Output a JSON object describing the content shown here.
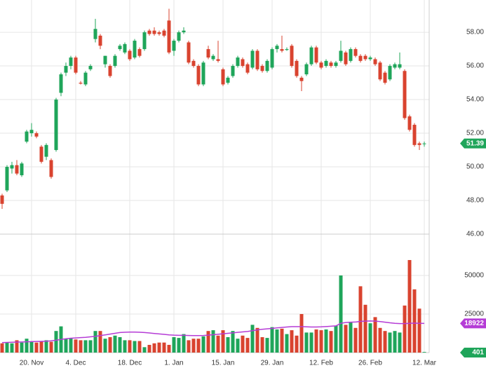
{
  "chart_data": {
    "type": "candlestick",
    "up_color": "#1fa55a",
    "down_color": "#d9432f",
    "ma_color": "#b53cd6",
    "grid": true,
    "categories": [
      null,
      null,
      null,
      null,
      null,
      null,
      "20. Nov",
      null,
      null,
      null,
      null,
      null,
      null,
      null,
      null,
      "4. Dec",
      null,
      null,
      null,
      null,
      null,
      null,
      null,
      null,
      null,
      null,
      "18. Dec",
      null,
      null,
      null,
      null,
      null,
      null,
      null,
      null,
      "1. Jan",
      null,
      null,
      null,
      null,
      null,
      null,
      null,
      null,
      null,
      "15. Jan",
      null,
      null,
      null,
      null,
      null,
      null,
      null,
      null,
      null,
      "29. Jan",
      null,
      null,
      null,
      null,
      null,
      null,
      null,
      null,
      null,
      "12. Feb",
      null,
      null,
      null,
      null,
      null,
      null,
      null,
      null,
      null,
      "26. Feb",
      null,
      null,
      null,
      null,
      null,
      null,
      null,
      null,
      null,
      null,
      "12. Mar"
    ],
    "open": [
      48.3,
      48.6,
      49.9,
      50.1,
      49.5,
      51.5,
      52.0,
      52.0,
      51.2,
      50.6,
      50.4,
      51.0,
      54.4,
      55.6,
      56.0,
      56.5,
      55.0,
      54.9,
      55.8,
      57.6,
      57.8,
      56.1,
      56.0,
      56.0,
      57.0,
      56.8,
      56.9,
      56.5,
      57.0,
      57.0,
      58.1,
      58.1,
      58.0,
      58.1,
      58.7,
      56.9,
      57.5,
      58.0,
      57.4,
      56.3,
      56.0,
      54.9,
      57.0,
      56.4,
      56.4,
      55.8,
      55.0,
      55.4,
      56.0,
      56.4,
      56.1,
      55.9,
      56.9,
      56.0,
      55.7,
      55.9,
      57.0,
      57.0,
      56.95,
      57.2,
      56.3,
      55.3,
      55.5,
      56.1,
      57.1,
      56.2,
      56.0,
      56.2,
      56.0,
      56.3,
      56.8,
      56.3,
      57.0,
      56.6,
      56.6,
      56.4,
      56.4,
      56.2,
      55.6,
      55.2,
      55.9,
      55.9,
      55.7,
      53.0,
      52.5,
      51.4,
      51.35
    ],
    "high": [
      48.4,
      50.1,
      50.3,
      50.4,
      50.3,
      52.2,
      52.6,
      52.1,
      51.3,
      51.4,
      50.5,
      54.1,
      55.6,
      56.2,
      56.6,
      56.6,
      55.1,
      55.7,
      56.1,
      58.8,
      57.9,
      56.6,
      56.1,
      56.7,
      57.3,
      57.4,
      57.0,
      57.6,
      57.1,
      58.1,
      58.2,
      58.3,
      58.1,
      58.2,
      59.4,
      57.6,
      58.1,
      58.3,
      57.5,
      56.4,
      56.1,
      56.3,
      57.2,
      56.7,
      57.5,
      55.9,
      55.4,
      56.1,
      56.6,
      56.5,
      56.2,
      57.0,
      57.0,
      56.1,
      56.4,
      57.1,
      57.3,
      57.8,
      57.1,
      57.3,
      56.4,
      55.4,
      56.2,
      57.2,
      57.2,
      56.3,
      56.4,
      56.3,
      56.3,
      57.5,
      56.9,
      57.1,
      57.1,
      56.7,
      56.7,
      56.6,
      56.5,
      56.3,
      55.7,
      56.1,
      56.2,
      56.8,
      55.8,
      53.1,
      52.6,
      51.5,
      51.5
    ],
    "low": [
      47.5,
      48.5,
      49.6,
      49.5,
      49.4,
      51.4,
      51.8,
      51.7,
      50.2,
      50.4,
      49.3,
      50.9,
      54.2,
      55.4,
      55.8,
      55.5,
      54.9,
      54.8,
      55.7,
      57.4,
      57.0,
      55.9,
      55.3,
      55.9,
      56.9,
      56.7,
      56.3,
      56.4,
      56.5,
      56.9,
      57.8,
      57.8,
      57.8,
      57.7,
      56.7,
      56.6,
      57.4,
      57.9,
      56.1,
      55.9,
      54.8,
      54.8,
      56.4,
      56.3,
      56.2,
      54.8,
      54.9,
      55.3,
      55.9,
      55.9,
      55.5,
      55.8,
      55.7,
      55.6,
      55.6,
      55.8,
      56.8,
      56.8,
      56.9,
      55.9,
      55.3,
      54.5,
      55.4,
      56.0,
      56.1,
      55.8,
      55.9,
      55.9,
      55.9,
      56.2,
      56.0,
      56.2,
      56.5,
      56.2,
      56.3,
      56.3,
      56.0,
      55.1,
      54.9,
      55.1,
      55.8,
      55.8,
      52.8,
      52.1,
      51.2,
      51.0,
      51.2
    ],
    "close": [
      47.8,
      50.0,
      50.1,
      49.6,
      50.2,
      52.1,
      52.2,
      51.8,
      50.3,
      51.3,
      49.4,
      54.0,
      55.5,
      56.0,
      56.5,
      55.6,
      54.95,
      55.6,
      56.0,
      58.2,
      57.2,
      56.6,
      55.4,
      56.6,
      57.2,
      57.3,
      56.4,
      57.5,
      56.6,
      58.0,
      57.9,
      57.9,
      57.9,
      57.8,
      56.8,
      57.5,
      58.0,
      58.1,
      56.2,
      56.0,
      54.9,
      56.2,
      56.5,
      56.6,
      56.3,
      54.9,
      55.3,
      56.0,
      56.5,
      56.0,
      55.6,
      56.9,
      55.8,
      55.7,
      56.3,
      57.0,
      57.2,
      56.9,
      57.0,
      56.0,
      55.4,
      55.1,
      56.1,
      57.1,
      56.2,
      55.9,
      56.3,
      56.0,
      56.2,
      56.9,
      56.1,
      57.0,
      56.6,
      56.3,
      56.4,
      56.5,
      56.1,
      55.2,
      55.0,
      56.0,
      56.1,
      56.1,
      52.9,
      52.2,
      51.3,
      51.3,
      51.39
    ],
    "volume": [
      6000,
      6500,
      6000,
      8000,
      6500,
      9000,
      7000,
      6500,
      7500,
      8000,
      7000,
      14000,
      17000,
      9000,
      9500,
      8500,
      8000,
      8000,
      8000,
      14000,
      14000,
      9000,
      10000,
      11000,
      10000,
      8000,
      8000,
      7500,
      7500,
      3500,
      5000,
      6000,
      6500,
      6500,
      5000,
      10000,
      9500,
      12000,
      8000,
      9000,
      9000,
      10500,
      14000,
      14500,
      11000,
      14500,
      10000,
      14000,
      9000,
      11000,
      9500,
      18000,
      16000,
      10000,
      9500,
      16500,
      15000,
      15500,
      12000,
      14500,
      11000,
      25000,
      13000,
      13000,
      15000,
      14500,
      15000,
      14000,
      17500,
      50000,
      18000,
      19500,
      16000,
      43000,
      31000,
      19000,
      23000,
      16000,
      14000,
      13000,
      14000,
      13000,
      30500,
      60000,
      41000,
      28500,
      401
    ],
    "ma": [
      6500,
      6600,
      6700,
      6800,
      6900,
      7000,
      7100,
      7200,
      7300,
      7400,
      7600,
      8000,
      8500,
      9000,
      9300,
      9500,
      9700,
      9900,
      10200,
      10500,
      11000,
      11500,
      12000,
      12500,
      13000,
      13200,
      13300,
      13300,
      13200,
      13000,
      12700,
      12400,
      12100,
      11800,
      11500,
      11300,
      11200,
      11200,
      11100,
      11000,
      11000,
      11100,
      11300,
      11600,
      11900,
      12200,
      12500,
      12800,
      13100,
      13400,
      13700,
      14200,
      14700,
      15100,
      15400,
      15700,
      16000,
      16300,
      16600,
      16800,
      16800,
      16800,
      16700,
      16600,
      16600,
      16700,
      16900,
      17100,
      17300,
      19000,
      19500,
      19700,
      19800,
      20200,
      20400,
      20500,
      20400,
      20100,
      19700,
      19300,
      19000,
      18800,
      18800,
      19000,
      19100,
      19000,
      18922
    ],
    "ylim": [
      46,
      59.92
    ],
    "yticks": [
      {
        "value": 46,
        "label": "46.00"
      },
      {
        "value": 48,
        "label": "48.00"
      },
      {
        "value": 50,
        "label": "50.00"
      },
      {
        "value": 52,
        "label": "52.00"
      },
      {
        "value": 54,
        "label": "54.00"
      },
      {
        "value": 56,
        "label": "56.00"
      },
      {
        "value": 58,
        "label": "58.00"
      }
    ],
    "y2lim": [
      0,
      75900
    ],
    "y2ticks": [
      25000,
      50000
    ]
  }
}
